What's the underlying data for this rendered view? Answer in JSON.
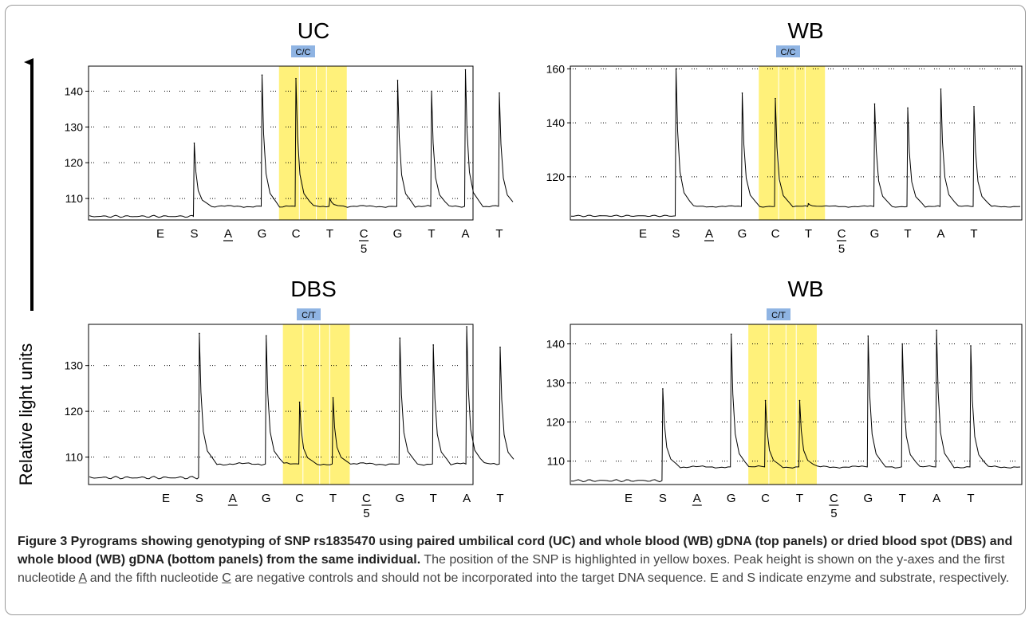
{
  "figure": {
    "yaxis_label": "Relative light units",
    "colors": {
      "highlight": "#fff17a",
      "genotype_badge": "#8fb4e3",
      "trace": "#000000",
      "grid": "#000000"
    }
  },
  "chart_data": [
    {
      "type": "line",
      "title": "UC",
      "genotype": "C/C",
      "x_labels": [
        "E",
        "S",
        "A",
        "G",
        "C",
        "T",
        "C",
        "G",
        "T",
        "A",
        "T"
      ],
      "x_footnote": "5",
      "underlined_labels": [
        2,
        6
      ],
      "ylim": [
        104,
        147
      ],
      "yticks": [
        110,
        120,
        130,
        140
      ],
      "grid": true,
      "highlighted_dispensations": [
        "C",
        "T"
      ],
      "baseline": 107.8,
      "baseline_start": 105,
      "peaks": [
        {
          "dispensation": "S",
          "height": 125.5
        },
        {
          "dispensation": "G",
          "height": 144.5
        },
        {
          "dispensation": "C",
          "height": 143.5
        },
        {
          "dispensation": "T",
          "height": 110
        },
        {
          "dispensation": "G",
          "height": 143
        },
        {
          "dispensation": "T",
          "height": 140
        },
        {
          "dispensation": "A",
          "height": 146
        },
        {
          "dispensation": "T",
          "height": 139.5
        }
      ]
    },
    {
      "type": "line",
      "title": "WB",
      "genotype": "C/C",
      "x_labels": [
        "E",
        "S",
        "A",
        "G",
        "C",
        "T",
        "C",
        "G",
        "T",
        "A",
        "T"
      ],
      "x_footnote": "5",
      "underlined_labels": [
        2,
        6
      ],
      "ylim": [
        104,
        161
      ],
      "yticks": [
        120,
        140,
        160
      ],
      "grid": true,
      "highlighted_dispensations": [
        "C",
        "T"
      ],
      "baseline": 109,
      "baseline_start": 105.5,
      "peaks": [
        {
          "dispensation": "S",
          "height": 160
        },
        {
          "dispensation": "G",
          "height": 151
        },
        {
          "dispensation": "C",
          "height": 149
        },
        {
          "dispensation": "T",
          "height": 110
        },
        {
          "dispensation": "G",
          "height": 147
        },
        {
          "dispensation": "T",
          "height": 145.5
        },
        {
          "dispensation": "A",
          "height": 152.5
        },
        {
          "dispensation": "T",
          "height": 146
        }
      ]
    },
    {
      "type": "line",
      "title": "DBS",
      "genotype": "C/T",
      "x_labels": [
        "E",
        "S",
        "A",
        "G",
        "C",
        "T",
        "C",
        "G",
        "T",
        "A",
        "T"
      ],
      "x_footnote": "5",
      "underlined_labels": [
        2,
        6
      ],
      "ylim": [
        104,
        139
      ],
      "yticks": [
        110,
        120,
        130
      ],
      "grid": true,
      "highlighted_dispensations": [
        "C",
        "T"
      ],
      "baseline": 108.5,
      "baseline_start": 105.5,
      "peaks": [
        {
          "dispensation": "S",
          "height": 137
        },
        {
          "dispensation": "G",
          "height": 136.5
        },
        {
          "dispensation": "C",
          "height": 122
        },
        {
          "dispensation": "T",
          "height": 123
        },
        {
          "dispensation": "G",
          "height": 136
        },
        {
          "dispensation": "T",
          "height": 134.5
        },
        {
          "dispensation": "A",
          "height": 138.5
        },
        {
          "dispensation": "T",
          "height": 134
        }
      ]
    },
    {
      "type": "line",
      "title": "WB",
      "genotype": "C/T",
      "x_labels": [
        "E",
        "S",
        "A",
        "G",
        "C",
        "T",
        "C",
        "G",
        "T",
        "A",
        "T"
      ],
      "x_footnote": "5",
      "underlined_labels": [
        2,
        6
      ],
      "ylim": [
        104,
        145
      ],
      "yticks": [
        110,
        120,
        130,
        140
      ],
      "grid": true,
      "highlighted_dispensations": [
        "C",
        "T"
      ],
      "baseline": 108.5,
      "baseline_start": 105,
      "peaks": [
        {
          "dispensation": "S",
          "height": 128.5
        },
        {
          "dispensation": "G",
          "height": 142.5
        },
        {
          "dispensation": "C",
          "height": 125.5
        },
        {
          "dispensation": "T",
          "height": 125.5
        },
        {
          "dispensation": "G",
          "height": 142
        },
        {
          "dispensation": "T",
          "height": 140
        },
        {
          "dispensation": "A",
          "height": 143.5
        },
        {
          "dispensation": "T",
          "height": 139.5
        }
      ]
    }
  ],
  "caption": {
    "lead": "Figure 3 Pyrograms showing genotyping of SNP rs1835470 using paired umbilical cord (UC) and whole blood (WB) gDNA (top panels) or dried blood spot (DBS) and whole blood (WB) gDNA (bottom panels) from the same individual.",
    "part1": " The position of the SNP is highlighted in yellow boxes. Peak height is shown on the y-axes and the first nucleotide ",
    "first_nt": "A",
    "part2": " and the fifth nucleotide ",
    "fifth_nt": "C",
    "part3": " are negative controls and should not be incorporated into the target DNA sequence. E and S indicate enzyme and substrate, respectively."
  }
}
